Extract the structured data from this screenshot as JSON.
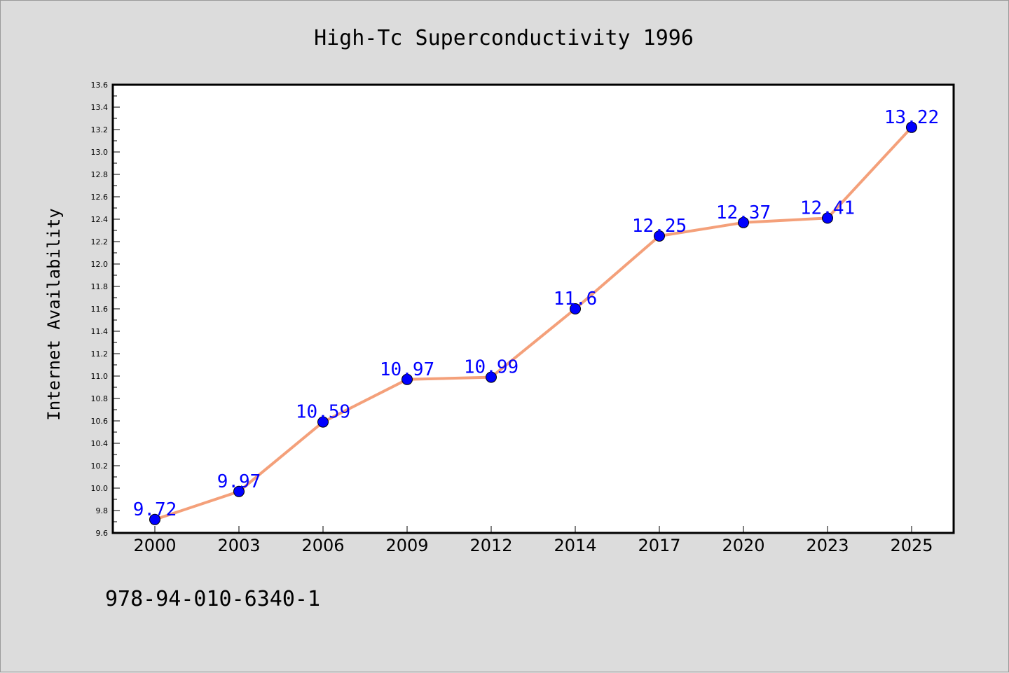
{
  "chart_data": {
    "type": "line",
    "title": "High-Tc Superconductivity 1996",
    "ylabel": "Internet Availability",
    "xlabel": "",
    "categories": [
      "2000",
      "2003",
      "2006",
      "2009",
      "2012",
      "2014",
      "2017",
      "2020",
      "2023",
      "2025"
    ],
    "series": [
      {
        "values": [
          9.72,
          9.97,
          10.59,
          10.97,
          10.99,
          11.6,
          12.25,
          12.37,
          12.41,
          13.22
        ],
        "labels": [
          "9.72",
          "9.97",
          "10.59",
          "10.97",
          "10.99",
          "11.6",
          "12.25",
          "12.37",
          "12.41",
          "13.22"
        ]
      }
    ],
    "ylim": [
      9.6,
      13.6
    ],
    "yticks": [
      "9.6",
      "9.8",
      "10.0",
      "10.2",
      "10.4",
      "10.6",
      "10.8",
      "11.0",
      "11.2",
      "11.4",
      "11.6",
      "11.8",
      "12.0",
      "12.2",
      "12.4",
      "12.6",
      "12.8",
      "13.0",
      "13.2",
      "13.4",
      "13.6"
    ],
    "grid": false,
    "legend": "none",
    "colors": {
      "line": "#f4a07a",
      "marker": "#0000ff",
      "data_label": "#0000ff",
      "plot_background": "#ffffff",
      "figure_background": "#dcdcdc"
    }
  },
  "footer": {
    "code": "978-94-010-6340-1"
  }
}
